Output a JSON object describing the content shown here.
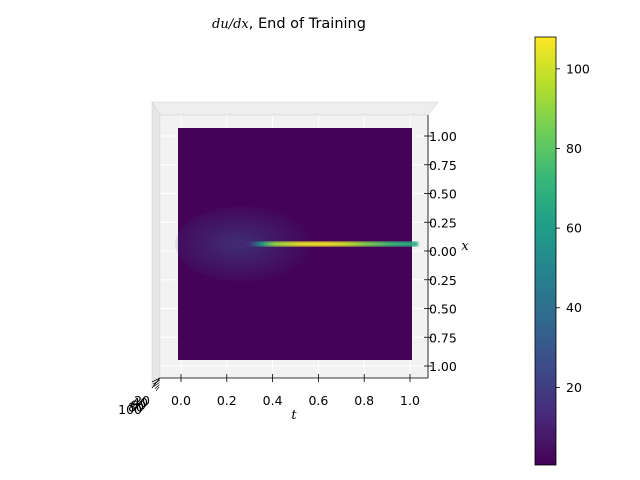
{
  "chart_data": {
    "type": "heatmap",
    "title_math": "du/dx",
    "title_text": ", End of Training",
    "xlabel": "t",
    "ylabel": "x",
    "x_ticks": [
      "0.0",
      "0.2",
      "0.4",
      "0.6",
      "0.8",
      "1.0"
    ],
    "y_ticks": [
      "1.00",
      "0.75",
      "0.50",
      "0.25",
      "0.00",
      "0.25",
      "0.50",
      "0.75",
      "1.00"
    ],
    "z_ticks": [
      "20",
      "40",
      "60",
      "80",
      "100"
    ],
    "xlim": [
      0,
      1
    ],
    "ylim": [
      -1,
      1
    ],
    "colorbar": {
      "ticks": [
        "20",
        "40",
        "60",
        "80",
        "100"
      ],
      "values": [
        20,
        40,
        60,
        80,
        100
      ],
      "range": [
        0.5,
        108
      ]
    },
    "colormap": [
      "#440154",
      "#482878",
      "#3e4989",
      "#31688e",
      "#26828e",
      "#1f9e89",
      "#35b779",
      "#6ece58",
      "#b5de2b",
      "#fde725"
    ],
    "background_value": 1,
    "shock": {
      "x": 0.0,
      "t_profile": [
        {
          "t": 0.0,
          "value": 1
        },
        {
          "t": 0.2,
          "value": 5
        },
        {
          "t": 0.3,
          "value": 15
        },
        {
          "t": 0.35,
          "value": 60
        },
        {
          "t": 0.4,
          "value": 90
        },
        {
          "t": 0.5,
          "value": 104
        },
        {
          "t": 0.6,
          "value": 107
        },
        {
          "t": 0.7,
          "value": 100
        },
        {
          "t": 0.8,
          "value": 85
        },
        {
          "t": 0.9,
          "value": 72
        },
        {
          "t": 1.0,
          "value": 65
        }
      ]
    }
  }
}
